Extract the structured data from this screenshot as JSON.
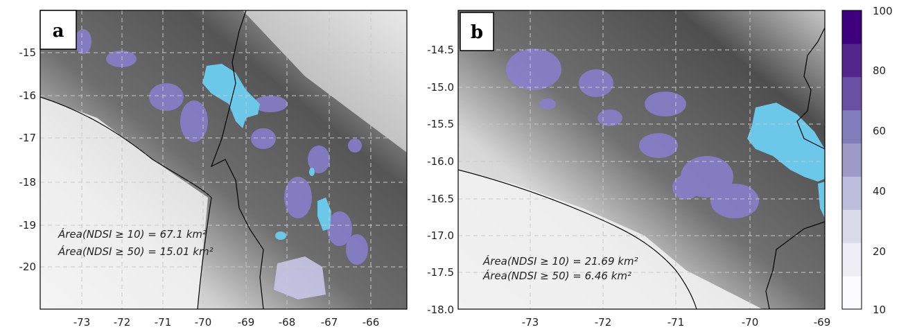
{
  "panels": [
    {
      "letter": "a",
      "x_ticks": [
        "-73",
        "-72",
        "-71",
        "-70",
        "-69",
        "-68",
        "-67",
        "-66"
      ],
      "y_ticks": [
        "-15",
        "-16",
        "-17",
        "-18",
        "-19",
        "-20"
      ],
      "annotation_1": "Área(NDSI ≥ 10) = 67.1 km²",
      "annotation_2": "Área(NDSI ≥ 50) = 15.01 km²"
    },
    {
      "letter": "b",
      "x_ticks": [
        "-73",
        "-72",
        "-71",
        "-70",
        "-69"
      ],
      "y_ticks": [
        "-14.5",
        "-15.0",
        "-15.5",
        "-16.0",
        "-16.5",
        "-17.0",
        "-17.5",
        "-18.0"
      ],
      "annotation_1": "Área(NDSI ≥ 10) = 21.69 km²",
      "annotation_2": "Área(NDSI ≥ 50) = 6.46 km²"
    }
  ],
  "colorbar": {
    "ticks": [
      "10",
      "20",
      "40",
      "60",
      "80",
      "100"
    ],
    "min": 10,
    "max": 100,
    "colors": [
      "#fcfbfd",
      "#efedf5",
      "#dadaeb",
      "#bcbddc",
      "#9e9ac8",
      "#807dba",
      "#6a51a3",
      "#54278f",
      "#3f007d"
    ]
  },
  "colors": {
    "lake": "#6cc8e8",
    "snow": "#8a7fd0",
    "terrain_dark": "#4a4a4a",
    "terrain_light": "#f4f4f4"
  }
}
